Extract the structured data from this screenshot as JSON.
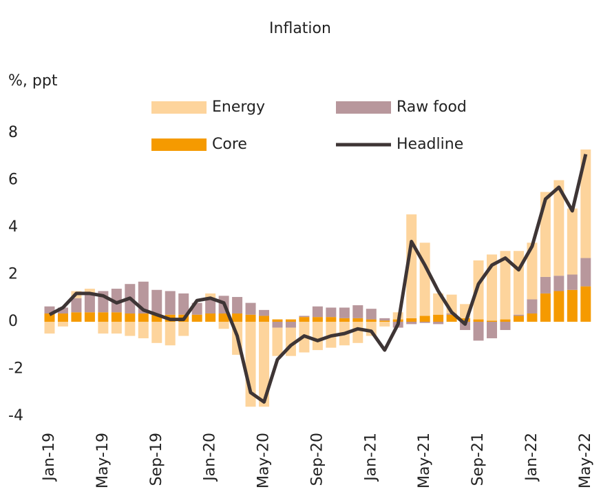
{
  "chart_data": {
    "type": "stacked_bar_line",
    "title": "Inflation",
    "y_label": "%, ppt",
    "categories": [
      "Jan-19",
      null,
      null,
      null,
      "May-19",
      null,
      null,
      null,
      "Sep-19",
      null,
      null,
      null,
      "Jan-20",
      null,
      null,
      null,
      "May-20",
      null,
      null,
      null,
      "Sep-20",
      null,
      null,
      null,
      "Jan-21",
      null,
      null,
      null,
      "May-21",
      null,
      null,
      null,
      "Sep-21",
      null,
      null,
      null,
      "Jan-22",
      null,
      null,
      null,
      "May-22"
    ],
    "series": [
      {
        "name": "Core",
        "color": "#f59a00",
        "kind": "bar",
        "values": [
          0.35,
          0.35,
          0.4,
          0.4,
          0.4,
          0.4,
          0.35,
          0.35,
          0.3,
          0.3,
          0.3,
          0.3,
          0.35,
          0.35,
          0.35,
          0.3,
          0.25,
          0.1,
          0.1,
          0.2,
          0.2,
          0.2,
          0.15,
          0.15,
          0.1,
          0.05,
          0.1,
          0.15,
          0.25,
          0.3,
          0.3,
          0.15,
          0.1,
          0.05,
          0.1,
          0.25,
          0.35,
          1.2,
          1.3,
          1.35,
          1.5
        ]
      },
      {
        "name": "Raw food",
        "color": "#b8979c",
        "kind": "bar",
        "values": [
          0.3,
          0.25,
          0.6,
          0.8,
          0.9,
          1.0,
          1.25,
          1.35,
          1.05,
          1.0,
          0.9,
          0.5,
          0.65,
          0.75,
          0.7,
          0.5,
          0.25,
          -0.25,
          -0.25,
          0.05,
          0.45,
          0.4,
          0.45,
          0.55,
          0.45,
          0.1,
          -0.25,
          -0.1,
          -0.05,
          -0.1,
          0.05,
          -0.35,
          -0.8,
          -0.7,
          -0.35,
          0.05,
          0.6,
          0.7,
          0.65,
          0.65,
          1.2
        ]
      },
      {
        "name": "Energy",
        "color": "#fdd49c",
        "kind": "bar",
        "values": [
          -0.5,
          -0.2,
          0.3,
          0.2,
          -0.5,
          -0.5,
          -0.6,
          -0.7,
          -0.9,
          -1.0,
          -0.6,
          0.0,
          0.2,
          -0.3,
          -1.4,
          -3.6,
          -3.6,
          -1.2,
          -1.2,
          -1.3,
          -1.2,
          -1.1,
          -1.0,
          -0.9,
          -0.6,
          -0.2,
          0.3,
          4.4,
          3.1,
          0.9,
          0.8,
          0.6,
          2.5,
          2.8,
          2.9,
          2.7,
          2.4,
          3.6,
          4.05,
          2.8,
          4.6
        ]
      },
      {
        "name": "Headline",
        "color": "#3e3535",
        "kind": "line",
        "values": [
          0.3,
          0.6,
          1.2,
          1.2,
          1.1,
          0.8,
          1.0,
          0.5,
          0.3,
          0.1,
          0.1,
          0.9,
          1.0,
          0.8,
          -0.6,
          -3.0,
          -3.4,
          -1.6,
          -1.0,
          -0.6,
          -0.8,
          -0.6,
          -0.5,
          -0.3,
          -0.4,
          -1.2,
          -0.1,
          3.4,
          2.4,
          1.3,
          0.4,
          -0.1,
          1.6,
          2.4,
          2.7,
          2.2,
          3.2,
          5.2,
          5.7,
          4.7,
          7.1
        ]
      }
    ],
    "ylim": [
      -4,
      8
    ],
    "yticks": [
      -4,
      -2,
      0,
      2,
      4,
      6,
      8
    ]
  }
}
